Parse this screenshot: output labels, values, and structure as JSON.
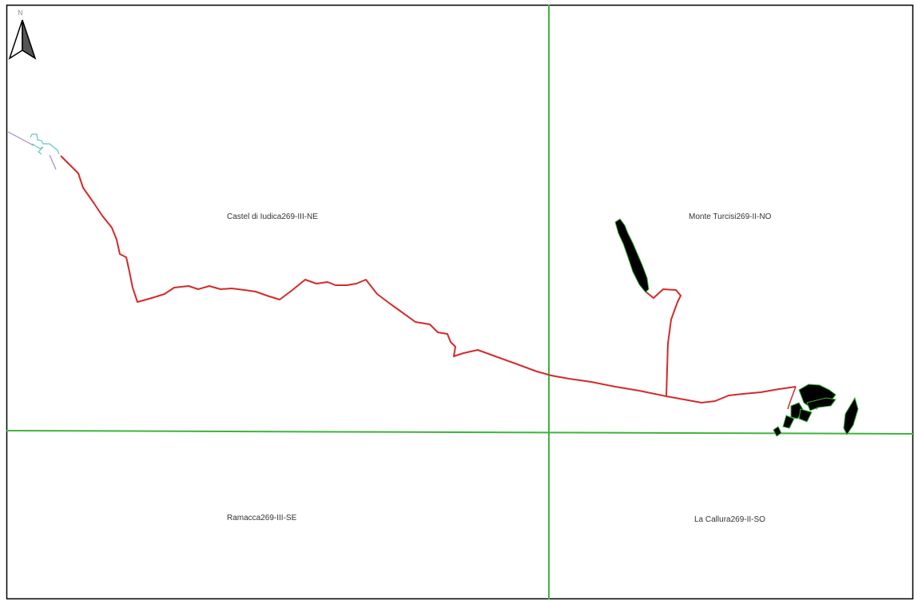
{
  "north_arrow": {
    "letter": "N",
    "icon": "north-arrow-icon"
  },
  "sheets": [
    {
      "id": "nw",
      "label": "Castel di Iudica269-III-NE"
    },
    {
      "id": "ne",
      "label": "Monte Turcisi269-II-NO"
    },
    {
      "id": "sw",
      "label": "Ramacca269-III-SE"
    },
    {
      "id": "se",
      "label": "La Callura269-II-SO"
    }
  ],
  "colors": {
    "frame": "#000000",
    "grid_lines": "#3cb43c",
    "route": "#d42a2a",
    "parcels": "#000000",
    "parcel_outline": "#3cb43c",
    "connector_teal": "#5fc8c0",
    "connector_purple": "#a58ac8"
  }
}
